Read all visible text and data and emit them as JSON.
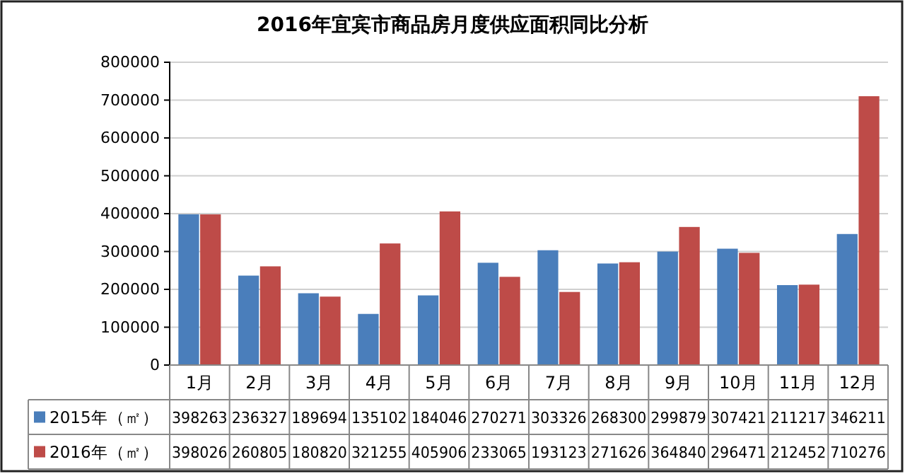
{
  "chart_data": {
    "type": "bar",
    "title": "2016年宜宾市商品房月度供应面积同比分析",
    "categories": [
      "1月",
      "2月",
      "3月",
      "4月",
      "5月",
      "6月",
      "7月",
      "8月",
      "9月",
      "10月",
      "11月",
      "12月"
    ],
    "series": [
      {
        "name": "2015年（㎡）",
        "color": "#4a7ebb",
        "values": [
          398263,
          236327,
          189694,
          135102,
          184046,
          270271,
          303326,
          268300,
          299879,
          307421,
          211217,
          346211
        ]
      },
      {
        "name": "2016年（㎡）",
        "color": "#be4b48",
        "values": [
          398026,
          260805,
          180820,
          321255,
          405906,
          233065,
          193123,
          271626,
          364840,
          296471,
          212452,
          710276
        ]
      }
    ],
    "ylim": [
      0,
      800000
    ],
    "yticks": [
      0,
      100000,
      200000,
      300000,
      400000,
      500000,
      600000,
      700000,
      800000
    ],
    "grid": "y",
    "legend": "bottom",
    "data_labels": true
  }
}
